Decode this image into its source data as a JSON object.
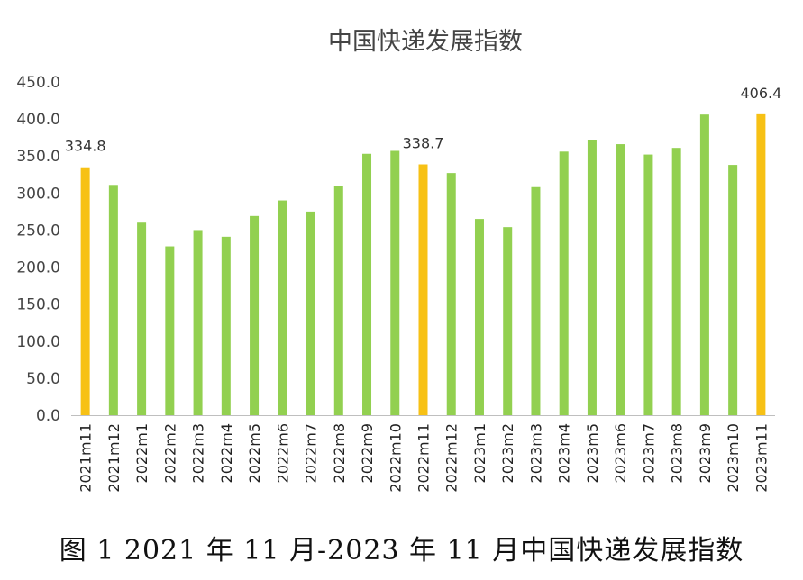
{
  "caption": "图 1 2021 年 11 月-2023 年 11 月中国快递发展指数",
  "colors": {
    "normal": "#92d050",
    "highlight": "#f7c115",
    "axis": "#bfbfbf"
  },
  "chart_data": {
    "type": "bar",
    "title": "中国快递发展指数",
    "xlabel": "",
    "ylabel": "",
    "ylim": [
      0,
      450
    ],
    "yticks": [
      0,
      50,
      100,
      150,
      200,
      250,
      300,
      350,
      400,
      450
    ],
    "ytick_labels": [
      "0.0",
      "50.0",
      "100.0",
      "150.0",
      "200.0",
      "250.0",
      "300.0",
      "350.0",
      "400.0",
      "450.0"
    ],
    "grid": false,
    "categories": [
      "2021m11",
      "2021m12",
      "2022m1",
      "2022m2",
      "2022m3",
      "2022m4",
      "2022m5",
      "2022m6",
      "2022m7",
      "2022m8",
      "2022m9",
      "2022m10",
      "2022m11",
      "2022m12",
      "2023m1",
      "2023m2",
      "2023m3",
      "2023m4",
      "2023m5",
      "2023m6",
      "2023m7",
      "2023m8",
      "2023m9",
      "2023m10",
      "2023m11"
    ],
    "values": [
      334.8,
      311,
      260,
      228,
      250,
      241,
      269,
      290,
      275,
      310,
      353,
      357,
      338.7,
      327,
      265,
      254,
      308,
      356,
      371,
      366,
      352,
      361,
      406,
      338,
      406.4
    ],
    "highlight": [
      true,
      false,
      false,
      false,
      false,
      false,
      false,
      false,
      false,
      false,
      false,
      false,
      true,
      false,
      false,
      false,
      false,
      false,
      false,
      false,
      false,
      false,
      false,
      false,
      true
    ],
    "data_labels": [
      "334.8",
      "",
      "",
      "",
      "",
      "",
      "",
      "",
      "",
      "",
      "",
      "",
      "338.7",
      "",
      "",
      "",
      "",
      "",
      "",
      "",
      "",
      "",
      "",
      "",
      "406.4"
    ]
  }
}
